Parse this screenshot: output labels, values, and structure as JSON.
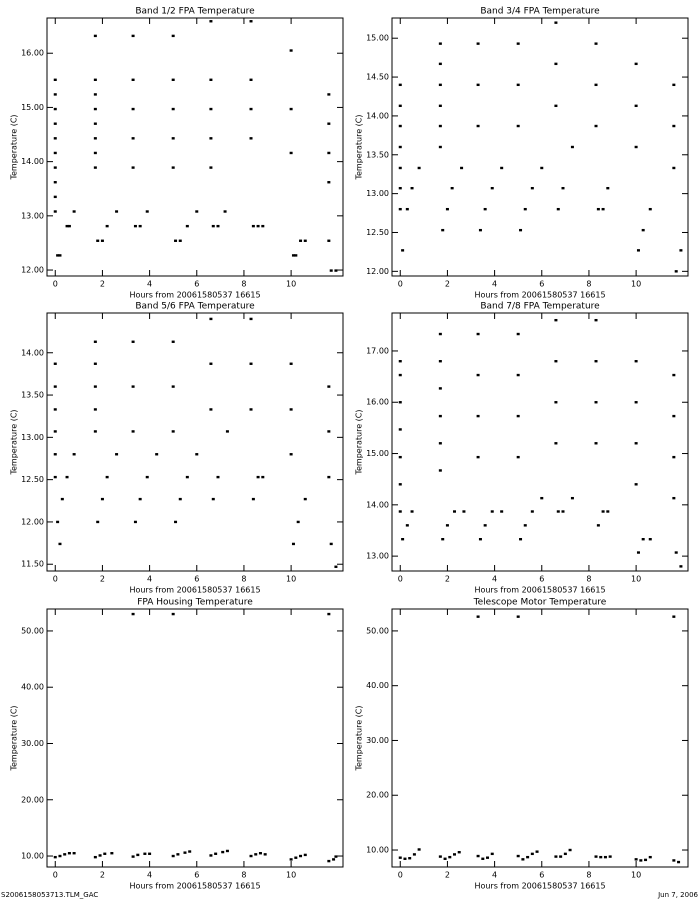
{
  "chart_data": [
    {
      "type": "scatter",
      "title": "Band 1/2 FPA Temperature",
      "xlabel": "Hours from 20061580537 16615",
      "ylabel": "Temperature (C)",
      "color": "#000000",
      "x": [
        0,
        0,
        0,
        0,
        0,
        0,
        0,
        0,
        0,
        0,
        0.1,
        0.2,
        0.5,
        0.6,
        0.8,
        1.7,
        1.7,
        1.7,
        1.7,
        1.7,
        1.7,
        1.7,
        1.7,
        1.8,
        2.0,
        2.2,
        2.6,
        3.3,
        3.3,
        3.3,
        3.3,
        3.3,
        3.4,
        3.6,
        3.9,
        5.0,
        5.0,
        5.0,
        5.0,
        5.0,
        5.1,
        5.3,
        5.6,
        6.0,
        6.6,
        6.6,
        6.6,
        6.6,
        6.6,
        6.7,
        6.9,
        7.2,
        8.3,
        8.3,
        8.3,
        8.3,
        8.4,
        8.6,
        8.8,
        10.0,
        10.0,
        10.0,
        10.1,
        10.2,
        10.4,
        10.6,
        11.6,
        11.6,
        11.6,
        11.6,
        11.6,
        11.7,
        11.9
      ],
      "y": [
        15.51,
        15.24,
        14.97,
        14.7,
        14.43,
        14.16,
        13.89,
        13.62,
        13.35,
        13.08,
        12.27,
        12.27,
        12.81,
        12.81,
        13.08,
        16.32,
        15.51,
        15.24,
        14.97,
        14.7,
        14.43,
        14.16,
        13.89,
        12.54,
        12.54,
        12.81,
        13.08,
        16.32,
        15.51,
        14.97,
        14.43,
        13.89,
        12.81,
        12.81,
        13.08,
        16.32,
        15.51,
        14.97,
        14.43,
        13.89,
        12.54,
        12.54,
        12.81,
        13.08,
        16.59,
        15.51,
        14.97,
        14.43,
        13.89,
        12.81,
        12.81,
        13.08,
        16.59,
        15.51,
        14.97,
        14.43,
        12.81,
        12.81,
        12.81,
        16.05,
        14.97,
        14.16,
        12.27,
        12.27,
        12.54,
        12.54,
        15.24,
        14.7,
        14.16,
        13.62,
        12.54,
        11.99,
        11.99
      ],
      "xlim": [
        -0.35,
        12.2
      ],
      "xticks": [
        0,
        2,
        4,
        6,
        8,
        10
      ],
      "ylim": [
        11.89,
        16.65
      ],
      "yticks": [
        {
          "value": 12,
          "label": "12.00"
        },
        {
          "value": 13,
          "label": "13.00"
        },
        {
          "value": 14,
          "label": "14.00"
        },
        {
          "value": 15,
          "label": "15.00"
        },
        {
          "value": 16,
          "label": "16.00"
        }
      ]
    },
    {
      "type": "scatter",
      "title": "Band 3/4 FPA Temperature",
      "xlabel": "Hours from 20061580537 16615",
      "ylabel": "Temperature (C)",
      "color": "#000000",
      "x": [
        0,
        0,
        0,
        0,
        0,
        0,
        0,
        0.1,
        0.3,
        0.5,
        0.8,
        1.7,
        1.7,
        1.7,
        1.7,
        1.7,
        1.7,
        1.8,
        2.0,
        2.2,
        2.6,
        3.3,
        3.3,
        3.3,
        3.4,
        3.6,
        3.9,
        4.3,
        5.0,
        5.0,
        5.0,
        5.1,
        5.3,
        5.6,
        6.0,
        6.6,
        6.6,
        6.6,
        6.7,
        6.9,
        7.3,
        8.3,
        8.3,
        8.3,
        8.4,
        8.6,
        8.8,
        10.0,
        10.0,
        10.0,
        10.1,
        10.3,
        10.6,
        11.6,
        11.6,
        11.6,
        11.7,
        11.9
      ],
      "y": [
        14.4,
        14.13,
        13.87,
        13.6,
        13.33,
        13.07,
        12.8,
        12.27,
        12.8,
        13.07,
        13.33,
        14.93,
        14.67,
        14.4,
        14.13,
        13.87,
        13.6,
        12.53,
        12.8,
        13.07,
        13.33,
        14.93,
        14.4,
        13.87,
        12.53,
        12.8,
        13.07,
        13.33,
        14.93,
        14.4,
        13.87,
        12.53,
        12.8,
        13.07,
        13.33,
        15.2,
        14.67,
        14.13,
        12.8,
        13.07,
        13.6,
        14.93,
        14.4,
        13.87,
        12.8,
        12.8,
        13.07,
        14.67,
        14.13,
        13.6,
        12.27,
        12.53,
        12.8,
        14.4,
        13.87,
        13.33,
        12.0,
        12.27
      ],
      "xlim": [
        -0.35,
        12.2
      ],
      "xticks": [
        0,
        2,
        4,
        6,
        8,
        10
      ],
      "ylim": [
        11.94,
        15.26
      ],
      "yticks": [
        {
          "value": 12,
          "label": "12.00"
        },
        {
          "value": 12.5,
          "label": "12.50"
        },
        {
          "value": 13,
          "label": "13.00"
        },
        {
          "value": 13.5,
          "label": "13.50"
        },
        {
          "value": 14,
          "label": "14.00"
        },
        {
          "value": 14.5,
          "label": "14.50"
        },
        {
          "value": 15,
          "label": "15.00"
        }
      ]
    },
    {
      "type": "scatter",
      "title": "Band 5/6 FPA Temperature",
      "xlabel": "Hours from 20061580537 16615",
      "ylabel": "Temperature (C)",
      "color": "#000000",
      "x": [
        0,
        0,
        0,
        0,
        0,
        0,
        0.1,
        0.2,
        0.3,
        0.5,
        0.8,
        1.7,
        1.7,
        1.7,
        1.7,
        1.7,
        1.8,
        2.0,
        2.2,
        2.6,
        3.3,
        3.3,
        3.3,
        3.4,
        3.6,
        3.9,
        4.3,
        5.0,
        5.0,
        5.0,
        5.1,
        5.3,
        5.6,
        6.0,
        6.6,
        6.6,
        6.6,
        6.7,
        6.9,
        7.3,
        8.3,
        8.3,
        8.3,
        8.4,
        8.6,
        8.8,
        10.0,
        10.0,
        10.0,
        10.1,
        10.3,
        10.6,
        11.6,
        11.6,
        11.6,
        11.7,
        11.9
      ],
      "y": [
        13.87,
        13.6,
        13.33,
        13.07,
        12.8,
        12.53,
        12.0,
        11.74,
        12.27,
        12.53,
        12.8,
        14.13,
        13.87,
        13.6,
        13.33,
        13.07,
        12.0,
        12.27,
        12.53,
        12.8,
        14.13,
        13.6,
        13.07,
        12.0,
        12.27,
        12.53,
        12.8,
        14.13,
        13.6,
        13.07,
        12.0,
        12.27,
        12.53,
        12.8,
        14.4,
        13.87,
        13.33,
        12.27,
        12.53,
        13.07,
        14.4,
        13.87,
        13.33,
        12.27,
        12.53,
        12.53,
        13.87,
        13.33,
        12.8,
        11.74,
        12.0,
        12.27,
        13.6,
        13.07,
        12.53,
        11.74,
        11.47
      ],
      "xlim": [
        -0.35,
        12.2
      ],
      "xticks": [
        0,
        2,
        4,
        6,
        8,
        10
      ],
      "ylim": [
        11.42,
        14.47
      ],
      "yticks": [
        {
          "value": 11.5,
          "label": "11.50"
        },
        {
          "value": 12,
          "label": "12.00"
        },
        {
          "value": 12.5,
          "label": "12.50"
        },
        {
          "value": 13,
          "label": "13.00"
        },
        {
          "value": 13.5,
          "label": "13.50"
        },
        {
          "value": 14,
          "label": "14.00"
        }
      ]
    },
    {
      "type": "scatter",
      "title": "Band 7/8 FPA Temperature",
      "xlabel": "Hours from 20061580537 16615",
      "ylabel": "Temperature (C)",
      "color": "#000000",
      "x": [
        0,
        0,
        0,
        0,
        0,
        0,
        0,
        0.1,
        0.3,
        0.5,
        1.7,
        1.7,
        1.7,
        1.7,
        1.7,
        1.7,
        1.8,
        2.0,
        2.3,
        2.7,
        3.3,
        3.3,
        3.3,
        3.3,
        3.4,
        3.6,
        3.9,
        4.3,
        5.0,
        5.0,
        5.0,
        5.0,
        5.1,
        5.3,
        5.6,
        6.0,
        6.6,
        6.6,
        6.6,
        6.6,
        6.7,
        6.9,
        7.3,
        8.3,
        8.3,
        8.3,
        8.3,
        8.4,
        8.6,
        8.8,
        10.0,
        10.0,
        10.0,
        10.0,
        10.1,
        10.3,
        10.6,
        11.6,
        11.6,
        11.6,
        11.6,
        11.7,
        11.9
      ],
      "y": [
        16.8,
        16.53,
        16.0,
        15.47,
        14.93,
        14.4,
        13.87,
        13.33,
        13.6,
        13.87,
        17.33,
        16.8,
        16.27,
        15.73,
        15.2,
        14.67,
        13.33,
        13.6,
        13.87,
        13.87,
        17.33,
        16.53,
        15.73,
        14.93,
        13.33,
        13.6,
        13.87,
        13.87,
        17.33,
        16.53,
        15.73,
        14.93,
        13.33,
        13.6,
        13.87,
        14.13,
        17.6,
        16.8,
        16.0,
        15.2,
        13.87,
        13.87,
        14.13,
        17.6,
        16.8,
        16.0,
        15.2,
        13.6,
        13.87,
        13.87,
        16.8,
        16.0,
        15.2,
        14.4,
        13.07,
        13.33,
        13.33,
        16.53,
        15.73,
        14.93,
        14.13,
        13.07,
        12.8
      ],
      "xlim": [
        -0.35,
        12.2
      ],
      "xticks": [
        0,
        2,
        4,
        6,
        8,
        10
      ],
      "ylim": [
        12.71,
        17.74
      ],
      "yticks": [
        {
          "value": 13,
          "label": "13.00"
        },
        {
          "value": 14,
          "label": "14.00"
        },
        {
          "value": 15,
          "label": "15.00"
        },
        {
          "value": 16,
          "label": "16.00"
        },
        {
          "value": 17,
          "label": "17.00"
        }
      ]
    },
    {
      "type": "scatter",
      "title": "FPA Housing Temperature",
      "xlabel": "Hours from 20061580537 16615",
      "ylabel": "Temperature (C)",
      "color": "#000000",
      "x": [
        0,
        0.2,
        0.4,
        0.6,
        0.8,
        1.7,
        1.9,
        2.1,
        2.4,
        3.3,
        3.3,
        3.5,
        3.8,
        4.0,
        5.0,
        5.0,
        5.2,
        5.5,
        5.7,
        6.6,
        6.8,
        7.1,
        7.3,
        8.3,
        8.5,
        8.7,
        8.9,
        10.0,
        10.2,
        10.4,
        10.6,
        11.6,
        11.6,
        11.8,
        11.9
      ],
      "y": [
        9.8,
        10.0,
        10.3,
        10.5,
        10.5,
        9.8,
        10.1,
        10.4,
        10.5,
        53.0,
        9.9,
        10.2,
        10.4,
        10.4,
        53.0,
        10.0,
        10.3,
        10.6,
        10.8,
        10.1,
        10.4,
        10.7,
        10.9,
        10.0,
        10.3,
        10.5,
        10.3,
        9.4,
        9.7,
        10.0,
        10.2,
        53.0,
        9.1,
        9.4,
        9.9
      ],
      "xlim": [
        -0.35,
        12.2
      ],
      "xticks": [
        0,
        2,
        4,
        6,
        8,
        10
      ],
      "ylim": [
        8.05,
        53.9
      ],
      "yticks": [
        {
          "value": 10,
          "label": "10.00"
        },
        {
          "value": 20,
          "label": "20.00"
        },
        {
          "value": 30,
          "label": "30.00"
        },
        {
          "value": 40,
          "label": "40.00"
        },
        {
          "value": 50,
          "label": "50.00"
        }
      ]
    },
    {
      "type": "scatter",
      "title": "Telescope Motor Temperature",
      "xlabel": "Hours from 20061580537 16615",
      "ylabel": "Temperature (C)",
      "color": "#000000",
      "x": [
        0,
        0.2,
        0.4,
        0.6,
        0.8,
        1.7,
        1.9,
        2.1,
        2.3,
        2.5,
        3.3,
        3.3,
        3.5,
        3.7,
        3.9,
        5.0,
        5.0,
        5.2,
        5.4,
        5.6,
        5.8,
        6.6,
        6.8,
        7.0,
        7.2,
        8.3,
        8.5,
        8.7,
        8.9,
        10.0,
        10.2,
        10.4,
        10.6,
        11.6,
        11.6,
        11.8
      ],
      "y": [
        8.6,
        8.4,
        8.5,
        9.2,
        10.1,
        8.8,
        8.4,
        8.7,
        9.2,
        9.6,
        52.6,
        8.9,
        8.4,
        8.6,
        9.3,
        52.6,
        8.9,
        8.3,
        8.7,
        9.3,
        9.7,
        8.8,
        8.8,
        9.3,
        10.0,
        8.8,
        8.7,
        8.7,
        8.8,
        8.3,
        8.1,
        8.2,
        8.7,
        52.6,
        8.1,
        7.8
      ],
      "xlim": [
        -0.35,
        12.2
      ],
      "xticks": [
        0,
        2,
        4,
        6,
        8,
        10
      ],
      "ylim": [
        6.9,
        54.0
      ],
      "yticks": [
        {
          "value": 10,
          "label": "10.00"
        },
        {
          "value": 20,
          "label": "20.00"
        },
        {
          "value": 30,
          "label": "30.00"
        },
        {
          "value": 40,
          "label": "40.00"
        },
        {
          "value": 50,
          "label": "50.00"
        }
      ]
    }
  ],
  "footer": {
    "left": "S2006158053713.TLM_GAC",
    "right": "Jun  7, 2006"
  }
}
